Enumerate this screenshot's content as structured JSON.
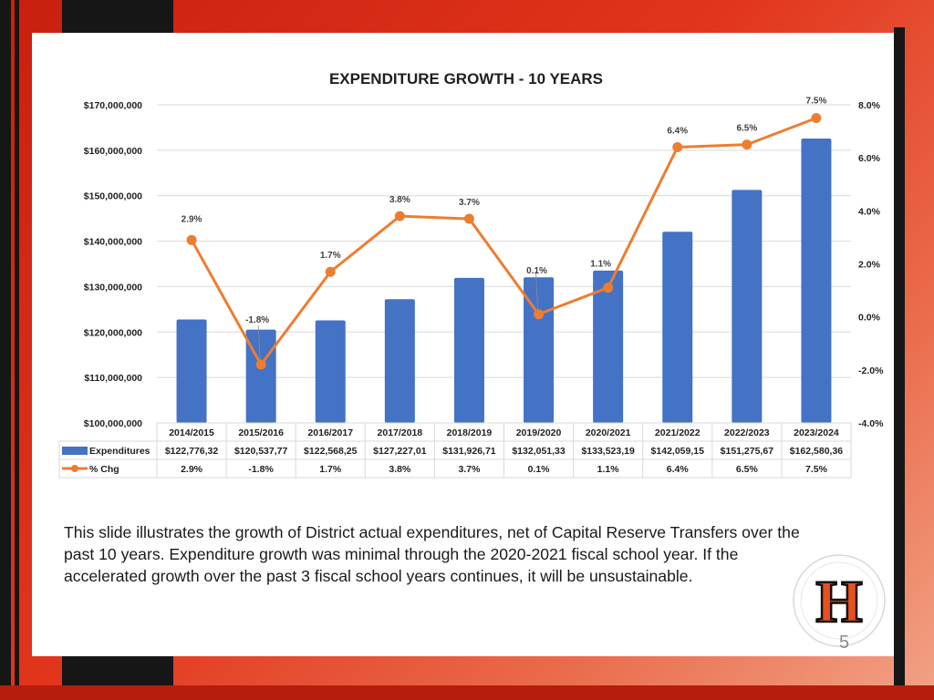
{
  "slide": {
    "caption": "This slide illustrates the growth of District actual expenditures, net of Capital Reserve Transfers over the past 10 years. Expenditure growth was minimal through the 2020-2021 fiscal school year.  If the accelerated growth over the past 3 fiscal school years continues, it will be unsustainable.",
    "logo_letter": "H",
    "page_number": "5"
  },
  "colors": {
    "bar": "#4472c4",
    "line": "#ed7d31",
    "background_red": "#d62f12",
    "frame_dark": "#161616"
  },
  "chart_data": {
    "type": "bar",
    "title": "EXPENDITURE GROWTH - 10 YEARS",
    "categories": [
      "2014/2015",
      "2015/2016",
      "2016/2017",
      "2017/2018",
      "2018/2019",
      "2019/2020",
      "2020/2021",
      "2021/2022",
      "2022/2023",
      "2023/2024"
    ],
    "series": [
      {
        "name": "Expenditures",
        "type": "bar",
        "axis": "left",
        "values": [
          122776320,
          120537770,
          122568250,
          127227010,
          131926710,
          132051330,
          133523190,
          142059150,
          151275670,
          162580360
        ],
        "table_labels": [
          "$122,776,32",
          "$120,537,77",
          "$122,568,25",
          "$127,227,01",
          "$131,926,71",
          "$132,051,33",
          "$133,523,19",
          "$142,059,15",
          "$151,275,67",
          "$162,580,36"
        ]
      },
      {
        "name": "% Chg",
        "type": "line",
        "axis": "right",
        "values": [
          2.9,
          -1.8,
          1.7,
          3.8,
          3.7,
          0.1,
          1.1,
          6.4,
          6.5,
          7.5
        ],
        "data_labels": [
          "2.9%",
          "-1.8%",
          "1.7%",
          "3.8%",
          "3.7%",
          "0.1%",
          "1.1%",
          "6.4%",
          "6.5%",
          "7.5%"
        ]
      }
    ],
    "y_left": {
      "min": 100000000,
      "max": 170000000,
      "ticks": [
        100000000,
        110000000,
        120000000,
        130000000,
        140000000,
        150000000,
        160000000,
        170000000
      ],
      "tick_labels": [
        "$100,000,000",
        "$110,000,000",
        "$120,000,000",
        "$130,000,000",
        "$140,000,000",
        "$150,000,000",
        "$160,000,000",
        "$170,000,000"
      ]
    },
    "y_right": {
      "min": -4,
      "max": 8,
      "ticks": [
        -4,
        -2,
        0,
        2,
        4,
        6,
        8
      ],
      "tick_labels": [
        "-4.0%",
        "-2.0%",
        "0.0%",
        "2.0%",
        "4.0%",
        "6.0%",
        "8.0%"
      ]
    },
    "grid": true,
    "data_table": true
  }
}
